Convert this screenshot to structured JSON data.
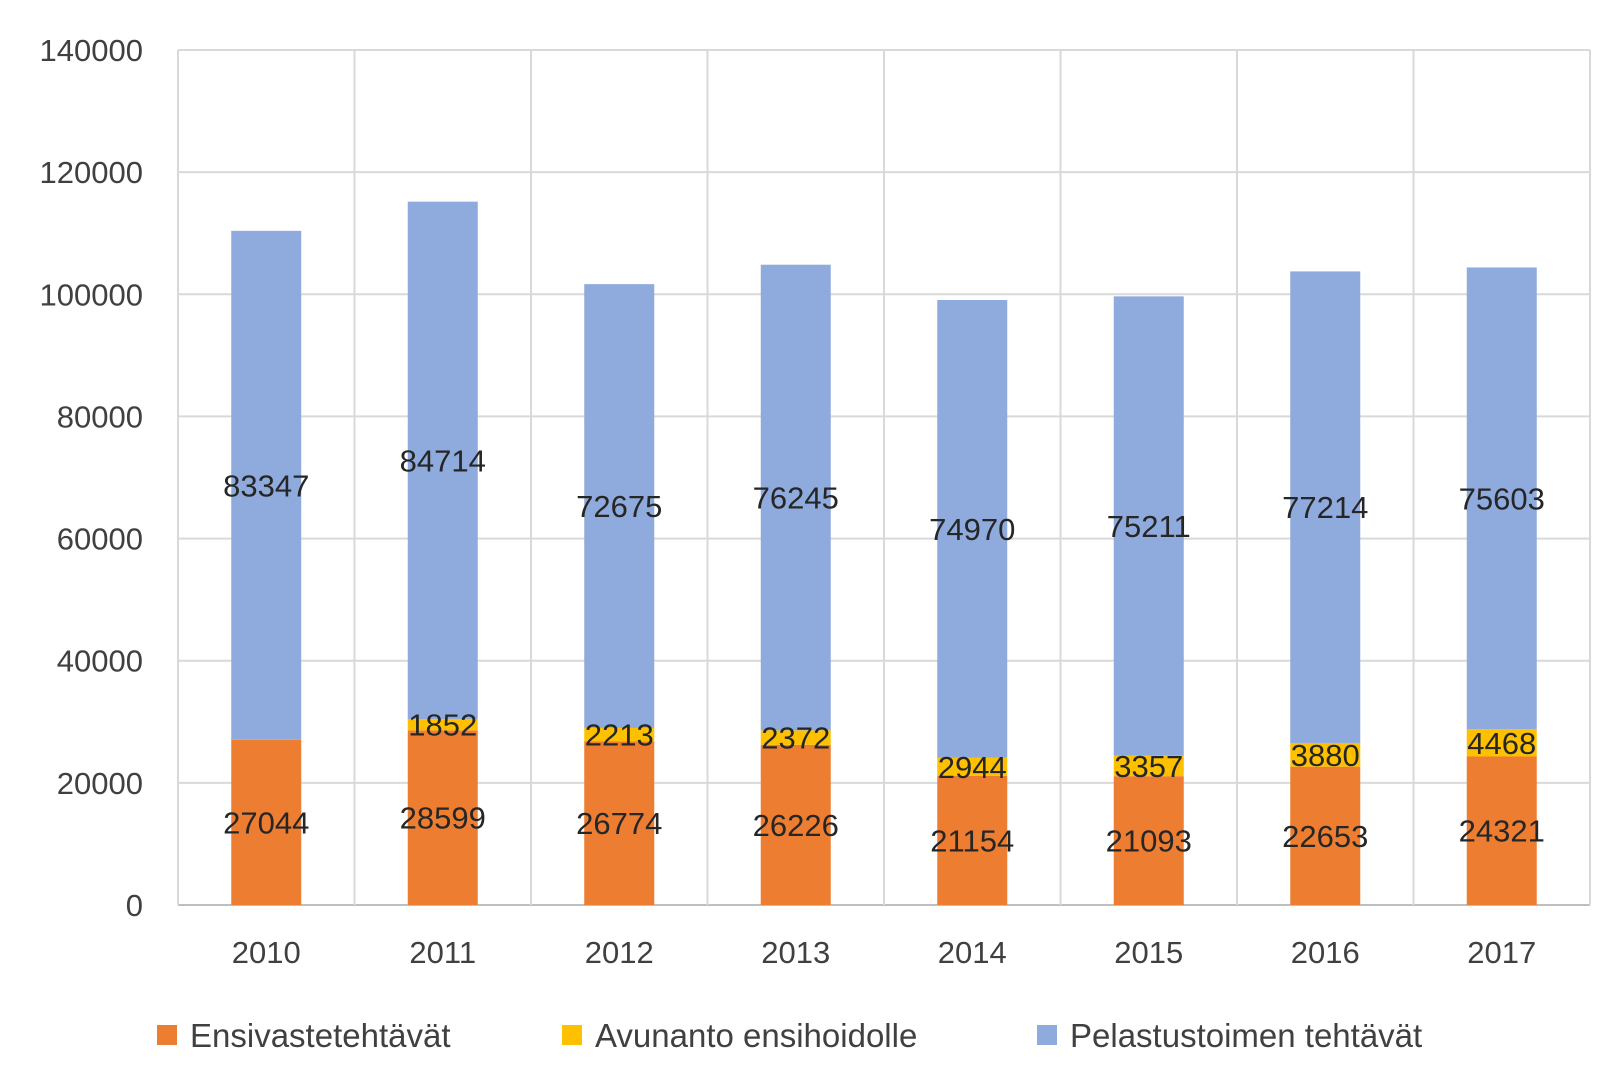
{
  "chart_data": {
    "type": "bar",
    "stacked": true,
    "categories": [
      "2010",
      "2011",
      "2012",
      "2013",
      "2014",
      "2015",
      "2016",
      "2017"
    ],
    "series": [
      {
        "name": "Ensivastetehtävät",
        "color": "#ED7D31",
        "values": [
          27044,
          28599,
          26774,
          26226,
          21154,
          21093,
          22653,
          24321
        ],
        "labels": [
          "27044",
          "28599",
          "26774",
          "26226",
          "21154",
          "21093",
          "22653",
          "24321"
        ]
      },
      {
        "name": "Avunanto ensihoidolle",
        "color": "#FFC000",
        "values": [
          null,
          1852,
          2213,
          2372,
          2944,
          3357,
          3880,
          4468
        ],
        "labels": [
          "",
          "1852",
          "2213",
          "2372",
          "2944",
          "3357",
          "3880",
          "4468"
        ]
      },
      {
        "name": "Pelastustoimen tehtävät",
        "color": "#8FAADC",
        "values": [
          83347,
          84714,
          72675,
          76245,
          74970,
          75211,
          77214,
          75603
        ],
        "labels": [
          "83347",
          "84714",
          "72675",
          "76245",
          "74970",
          "75211",
          "77214",
          "75603"
        ]
      }
    ],
    "y_ticks": [
      "0",
      "20000",
      "40000",
      "60000",
      "80000",
      "100000",
      "120000",
      "140000"
    ],
    "ylim": [
      0,
      140000
    ],
    "grid": true,
    "gridlines": "horizontal-and-vertical",
    "legend_position": "bottom"
  }
}
